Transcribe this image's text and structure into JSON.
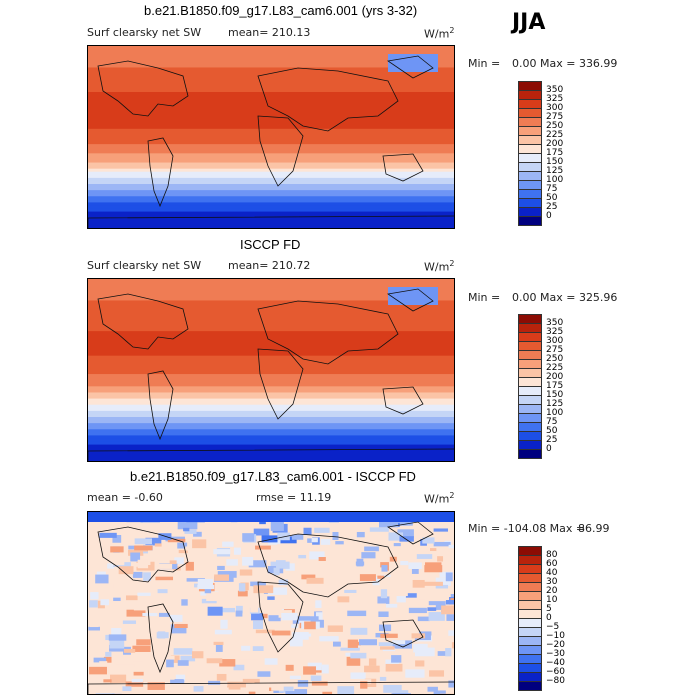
{
  "season": "JJA",
  "panels": [
    {
      "title": "b.e21.B1850.f09_g17.L83_cam6.001 (yrs 3-32)",
      "left_label": "Surf clearsky net SW",
      "center_label": "mean= 210.13",
      "units": "W/m",
      "units_sup": "2",
      "min_label": "Min =",
      "minmax": "0.00 Max = 336.99",
      "cbar_ticks": [
        "350",
        "325",
        "300",
        "275",
        "250",
        "225",
        "200",
        "175",
        "150",
        "125",
        "100",
        "75",
        "50",
        "25",
        "0"
      ]
    },
    {
      "title": "ISCCP FD",
      "left_label": "Surf clearsky net SW",
      "center_label": "mean= 210.72",
      "units": "W/m",
      "units_sup": "2",
      "min_label": "Min =",
      "minmax": "0.00 Max = 325.96",
      "cbar_ticks": [
        "350",
        "325",
        "300",
        "275",
        "250",
        "225",
        "200",
        "175",
        "150",
        "125",
        "100",
        "75",
        "50",
        "25",
        "0"
      ]
    },
    {
      "title": "b.e21.B1850.f09_g17.L83_cam6.001 - ISCCP FD",
      "left_label": "mean =  -0.60",
      "center_label": "rmse =  11.19",
      "units": "W/m",
      "units_sup": "2",
      "min_label": "Min = -104.08 Max =",
      "minmax": "86.99",
      "cbar_ticks": [
        "80",
        "60",
        "40",
        "30",
        "20",
        "10",
        "5",
        "0",
        "−5",
        "−10",
        "−20",
        "−30",
        "−40",
        "−60",
        "−80"
      ]
    }
  ],
  "chart_data": [
    {
      "type": "heatmap",
      "title": "b.e21.B1850.f09_g17.L83_cam6.001 (yrs 3-32)",
      "variable": "Surf clearsky net SW",
      "units": "W/m2",
      "season": "JJA",
      "mean": 210.13,
      "min": 0.0,
      "max": 336.99,
      "colorbar_levels": [
        0,
        25,
        50,
        75,
        100,
        125,
        150,
        175,
        200,
        225,
        250,
        275,
        300,
        325,
        350
      ],
      "zonal_profile": {
        "lat": [
          80,
          60,
          40,
          20,
          0,
          -20,
          -40,
          -60,
          -80
        ],
        "value": [
          260,
          285,
          305,
          310,
          290,
          240,
          150,
          60,
          5
        ]
      }
    },
    {
      "type": "heatmap",
      "title": "ISCCP FD",
      "variable": "Surf clearsky net SW",
      "units": "W/m2",
      "season": "JJA",
      "mean": 210.72,
      "min": 0.0,
      "max": 325.96,
      "colorbar_levels": [
        0,
        25,
        50,
        75,
        100,
        125,
        150,
        175,
        200,
        225,
        250,
        275,
        300,
        325,
        350
      ],
      "zonal_profile": {
        "lat": [
          80,
          60,
          40,
          20,
          0,
          -20,
          -40,
          -60,
          -80
        ],
        "value": [
          265,
          285,
          300,
          305,
          285,
          235,
          145,
          55,
          5
        ]
      }
    },
    {
      "type": "heatmap",
      "title": "b.e21.B1850.f09_g17.L83_cam6.001 - ISCCP FD",
      "units": "W/m2",
      "season": "JJA",
      "mean": -0.6,
      "rmse": 11.19,
      "min": -104.08,
      "max": 86.99,
      "colorbar_levels": [
        -80,
        -60,
        -40,
        -30,
        -20,
        -10,
        -5,
        0,
        5,
        10,
        20,
        30,
        40,
        60,
        80
      ]
    }
  ],
  "colors": {
    "abs_scale": [
      "#00007f",
      "#0a22c8",
      "#1d4fe6",
      "#3f72f0",
      "#6e95f5",
      "#9cb6f5",
      "#c5d5f6",
      "#e6ecfa",
      "#fde5d6",
      "#fbc4a6",
      "#f7a07a",
      "#ef7c54",
      "#e55a30",
      "#d83c1a",
      "#b8230c",
      "#8c0c04"
    ],
    "diff_scale": [
      "#00007f",
      "#0a22c8",
      "#1d4fe6",
      "#3f72f0",
      "#6e95f5",
      "#9cb6f5",
      "#c5d5f6",
      "#e6ecfa",
      "#fde5d6",
      "#fbc4a6",
      "#f7a07a",
      "#ef7c54",
      "#e55a30",
      "#d83c1a",
      "#b8230c",
      "#8c0c04"
    ]
  }
}
